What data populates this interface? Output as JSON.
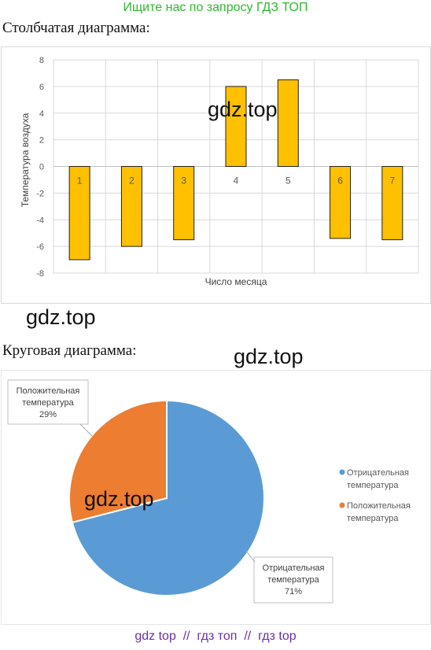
{
  "header": {
    "banner": "Ищите нас по запросу ГДЗ ТОП"
  },
  "sections": {
    "bar_title": "Столбчатая диаграмма:",
    "pie_title": "Круговая диаграмма:"
  },
  "watermarks": [
    "gdz.top",
    "gdz.top",
    "gdz.top",
    "gdz.top"
  ],
  "footer": {
    "link1": "gdz top",
    "sep1": "//",
    "link2": "гдз топ",
    "sep2": "//",
    "link3": "гдз top"
  },
  "colors": {
    "bar_fill": "#ffc000",
    "pie_negative": "#5b9bd5",
    "pie_positive": "#ed7d31"
  },
  "chart_data": [
    {
      "type": "bar",
      "categories": [
        "1",
        "2",
        "3",
        "4",
        "5",
        "6",
        "7"
      ],
      "values": [
        -7,
        -6,
        -5.5,
        6,
        6.5,
        -5.4,
        -5.5
      ],
      "xlabel": "Число месяца",
      "ylabel": "Температура воздуха",
      "ylim": [
        -8,
        8
      ],
      "yticks": [
        "8",
        "6",
        "4",
        "2",
        "0",
        "-2",
        "-4",
        "-6",
        "-8"
      ],
      "grid": true,
      "legend": "none"
    },
    {
      "type": "pie",
      "slices": [
        {
          "name": "Отрицательная температура",
          "value": 71,
          "label_line1": "Отрицательная",
          "label_line2": "температура",
          "label_pct": "71%"
        },
        {
          "name": "Положительная температура",
          "value": 29,
          "label_line1": "Положительная",
          "label_line2": "температура",
          "label_pct": "29%"
        }
      ],
      "legend_items": [
        {
          "line1": "Отрицательная",
          "line2": "температура"
        },
        {
          "line1": "Положительная",
          "line2": "температура"
        }
      ],
      "legend": "right"
    }
  ]
}
